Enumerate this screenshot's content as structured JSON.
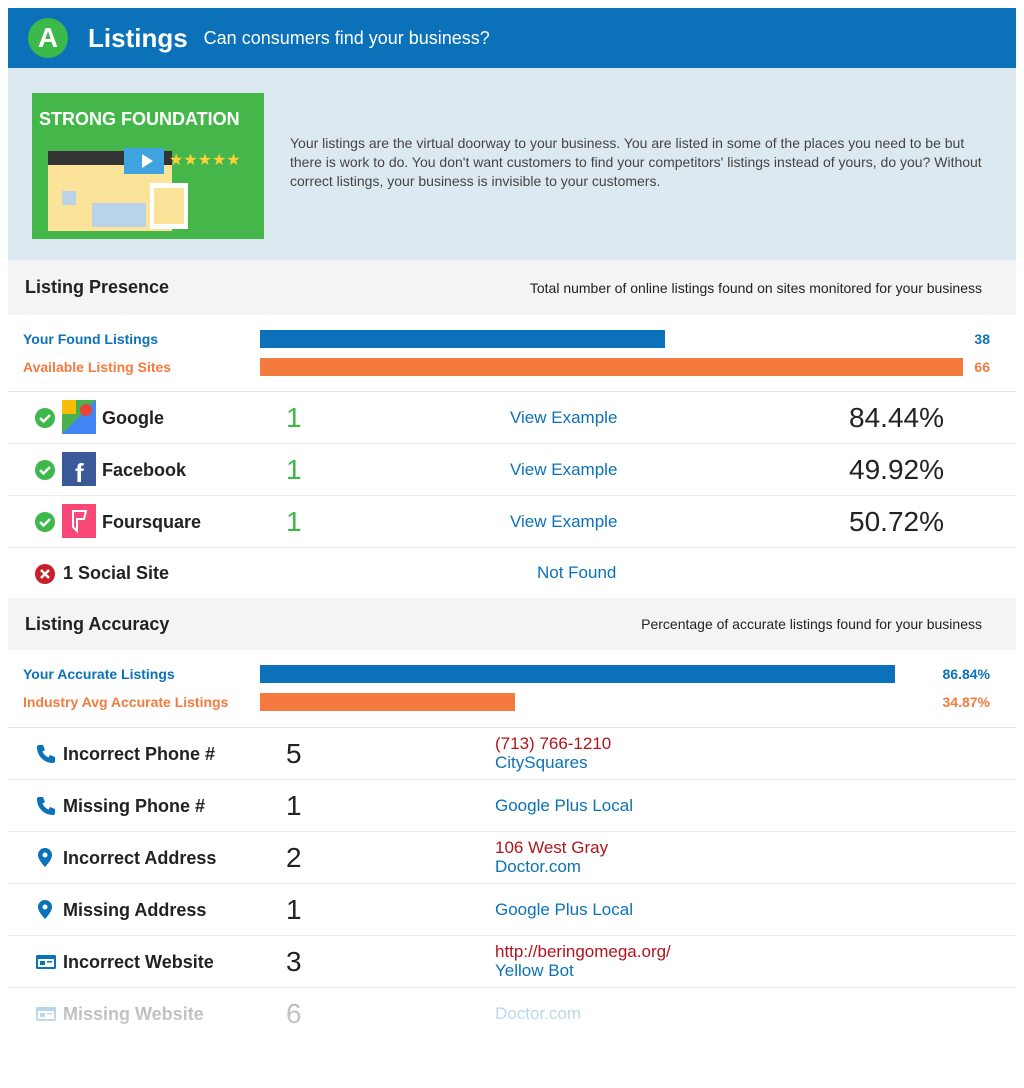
{
  "header": {
    "grade": "A",
    "title": "Listings",
    "subtitle": "Can consumers find your business?"
  },
  "intro": {
    "badge": "STRONG FOUNDATION",
    "text": "Your listings are the virtual doorway to your business. You are listed in some of the places you need to be but there is work to do. You don't want customers to find your competitors' listings instead of yours, do you? Without correct listings, your business is invisible to your customers."
  },
  "presence": {
    "title": "Listing Presence",
    "description": "Total number of online listings found on sites monitored for your business",
    "bars": [
      {
        "label": "Your Found Listings",
        "value": 38
      },
      {
        "label": "Available Listing Sites",
        "value": 66
      }
    ],
    "rows": [
      {
        "name": "Google",
        "count": 1,
        "link": "View Example",
        "score": "84.44%"
      },
      {
        "name": "Facebook",
        "count": 1,
        "link": "View Example",
        "score": "49.92%"
      },
      {
        "name": "Foursquare",
        "count": 1,
        "link": "View Example",
        "score": "50.72%"
      },
      {
        "name": "1 Social Site",
        "status": "Not Found"
      }
    ]
  },
  "accuracy": {
    "title": "Listing Accuracy",
    "description": "Percentage of accurate listings found for your business",
    "bars": [
      {
        "label": "Your Accurate Listings",
        "value": 86.84,
        "value_label": "86.84%"
      },
      {
        "label": "Industry Avg Accurate Listings",
        "value": 34.87,
        "value_label": "34.87%"
      }
    ],
    "rows": [
      {
        "name": "Incorrect Phone #",
        "count": 5,
        "detail": "(713) 766-1210",
        "source": "CitySquares"
      },
      {
        "name": "Missing Phone #",
        "count": 1,
        "source": "Google Plus Local"
      },
      {
        "name": "Incorrect Address",
        "count": 2,
        "detail": "106 West Gray",
        "source": "Doctor.com"
      },
      {
        "name": "Missing Address",
        "count": 1,
        "source": "Google Plus Local"
      },
      {
        "name": "Incorrect Website",
        "count": 3,
        "detail": "http://beringomega.org/",
        "source": "Yellow Bot"
      },
      {
        "name": "Missing Website",
        "count": 6,
        "source": "Doctor.com"
      }
    ]
  }
}
